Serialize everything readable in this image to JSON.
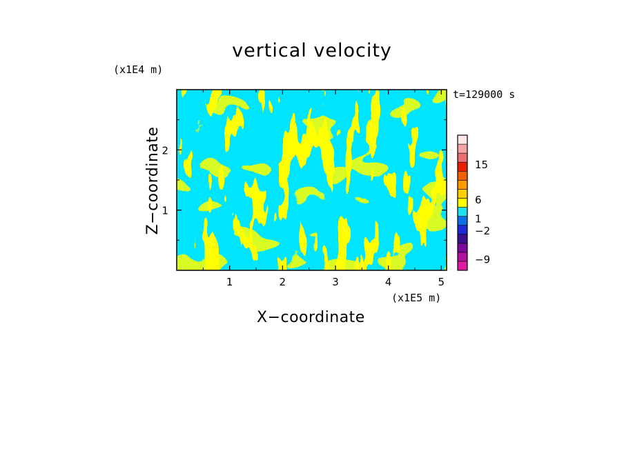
{
  "chart_data": {
    "type": "heatmap",
    "title": "vertical velocity",
    "xlabel": "X−coordinate",
    "ylabel": "Z−coordinate",
    "x_unit_label": "(x1E5 m)",
    "y_unit_label": "(x1E4 m)",
    "time_label": "t=129000 s",
    "xlim": [
      0,
      5.1
    ],
    "ylim": [
      0,
      3.0
    ],
    "x_ticks": [
      1,
      2,
      3,
      4,
      5
    ],
    "y_ticks": [
      1,
      2
    ],
    "x_tick_labels": [
      "1",
      "2",
      "3",
      "4",
      "5"
    ],
    "y_tick_labels": [
      "1",
      "2"
    ],
    "colorbar": {
      "tick_labels": [
        "15",
        "6",
        "1",
        "−2",
        "−9"
      ],
      "colors": [
        "#e01aa0",
        "#b0129c",
        "#7a0a9a",
        "#3a0f90",
        "#1f2ad6",
        "#0d6fe8",
        "#1fe0f0",
        "#ffff00",
        "#ffd000",
        "#ff9a00",
        "#f06000",
        "#e82000",
        "#e87070",
        "#f4a4a4",
        "#fce6e6"
      ]
    },
    "field_colors": {
      "downdraft": "#00e5ff",
      "updraft": "#ffff00"
    }
  }
}
